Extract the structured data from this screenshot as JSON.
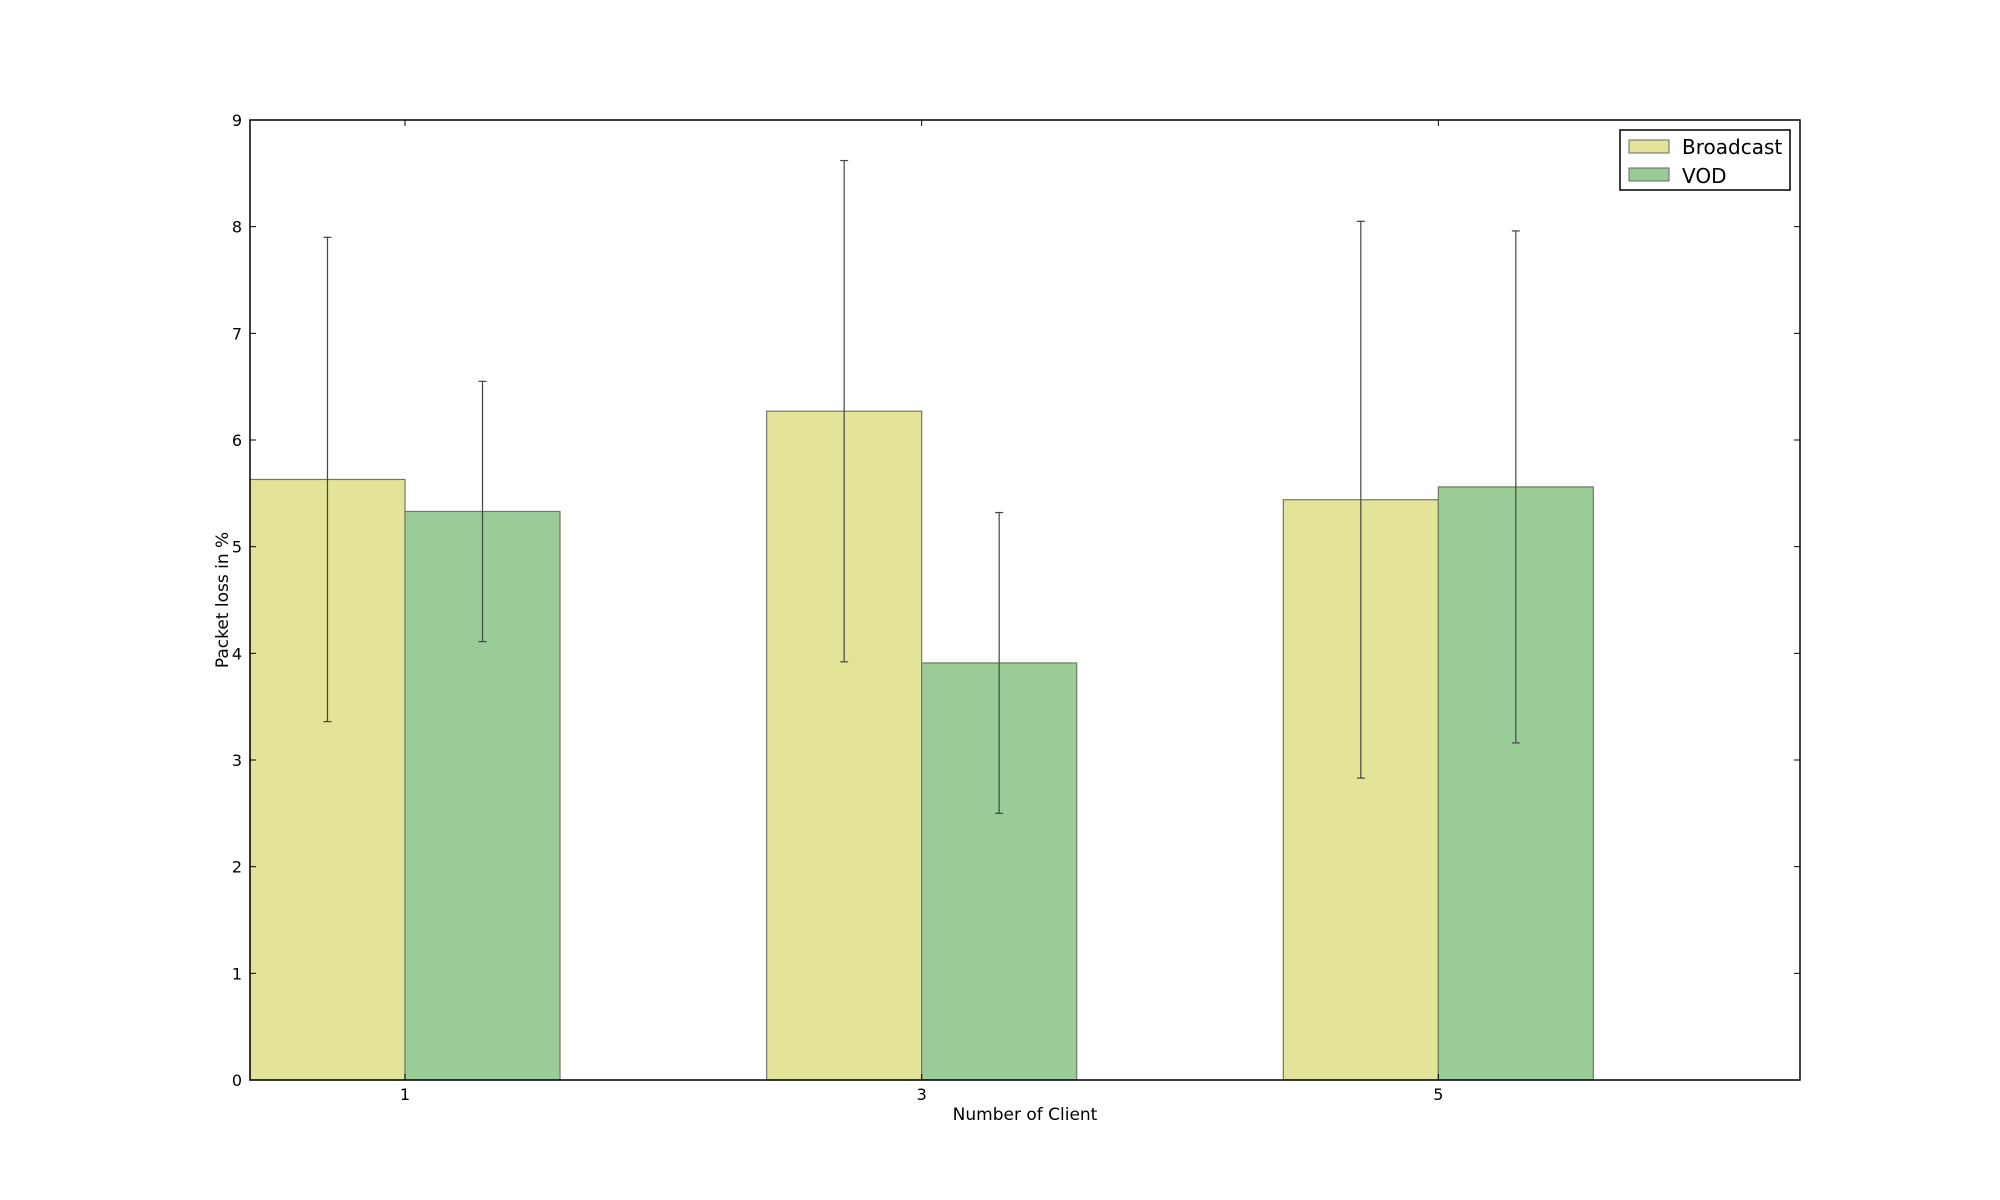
{
  "chart_data": {
    "type": "bar",
    "title": "",
    "xlabel": "Number of Client",
    "ylabel": "Packet loss in %",
    "categories": [
      "1",
      "3",
      "5"
    ],
    "ylim": [
      0,
      9
    ],
    "yticks": [
      "0",
      "1",
      "2",
      "3",
      "4",
      "5",
      "6",
      "7",
      "8",
      "9"
    ],
    "grid": false,
    "legend_placement": "top-right",
    "series": [
      {
        "name": "Broadcast",
        "color": "#e3e497",
        "values": [
          5.63,
          6.27,
          5.44
        ],
        "errors": [
          2.27,
          2.35,
          2.61
        ]
      },
      {
        "name": "VOD",
        "color": "#9acc98",
        "values": [
          5.33,
          3.91,
          5.56
        ],
        "errors": [
          1.22,
          1.41,
          2.4
        ]
      }
    ]
  }
}
